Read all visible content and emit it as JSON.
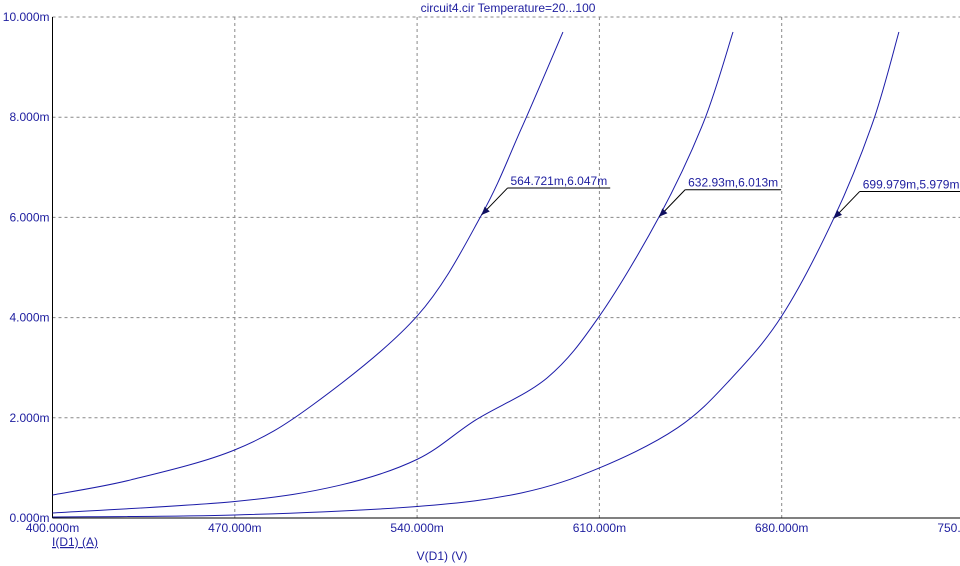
{
  "chart_data": {
    "type": "line",
    "title": "circuit4.cir Temperature=20...100",
    "x_label": "V(D1) (V)",
    "y_label": "I(D1) (A)",
    "xlim": [
      0.4,
      0.75
    ],
    "xticks": [
      {
        "value": 0.4,
        "label": "400.000m"
      },
      {
        "value": 0.47,
        "label": "470.000m"
      },
      {
        "value": 0.54,
        "label": "540.000m"
      },
      {
        "value": 0.61,
        "label": "610.000m"
      },
      {
        "value": 0.68,
        "label": "680.000m"
      },
      {
        "value": 0.75,
        "label": "750.000m"
      }
    ],
    "ylim": [
      0,
      0.01
    ],
    "yticks": [
      {
        "value": 0,
        "label": "0.000m"
      },
      {
        "value": 0.002,
        "label": "2.000m"
      },
      {
        "value": 0.004,
        "label": "4.000m"
      },
      {
        "value": 0.006,
        "label": "6.000m"
      },
      {
        "value": 0.008,
        "label": "8.000m"
      },
      {
        "value": 0.01,
        "label": "10.000m"
      }
    ],
    "grid": true,
    "series": [
      {
        "color": "#1c1ca8",
        "x": [
          0.4,
          0.43,
          0.47,
          0.5,
          0.54,
          0.564721,
          0.58,
          0.596
        ],
        "values": [
          0.00046,
          0.00076,
          0.00136,
          0.00226,
          0.00403,
          0.006047,
          0.00777,
          0.0097
        ]
      },
      {
        "color": "#1c1ca8",
        "x": [
          0.4,
          0.47,
          0.51,
          0.54,
          0.5626,
          0.59,
          0.61,
          0.63293,
          0.65,
          0.6613
        ],
        "values": [
          0.0001,
          0.00033,
          0.00065,
          0.00117,
          0.00196,
          0.0028,
          0.00403,
          0.006013,
          0.0079,
          0.0097
        ]
      },
      {
        "color": "#1c1ca8",
        "x": [
          0.4,
          0.47,
          0.54,
          0.58,
          0.61,
          0.64,
          0.66,
          0.68,
          0.699979,
          0.715,
          0.725
        ],
        "values": [
          2e-05,
          6e-05,
          0.00023,
          0.0005,
          0.001,
          0.0018,
          0.00275,
          0.00403,
          0.005979,
          0.0079,
          0.0097
        ]
      }
    ],
    "annotations": [
      {
        "text": "564.721m,6.047m",
        "x": 0.564721,
        "y": 0.006047
      },
      {
        "text": "632.93m,6.013m",
        "x": 0.63293,
        "y": 0.006013
      },
      {
        "text": "699.979m,5.979m",
        "x": 0.699979,
        "y": 0.005979
      }
    ]
  }
}
